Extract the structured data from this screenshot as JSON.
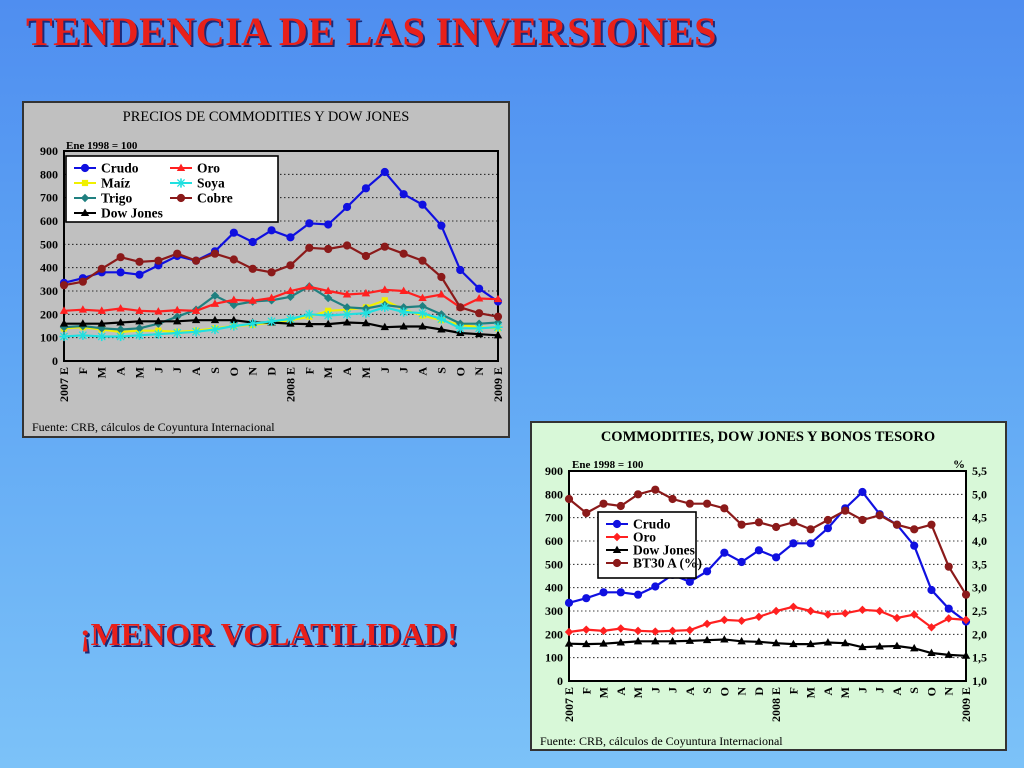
{
  "slide": {
    "title": "TENDENCIA DE LAS INVERSIONES",
    "slogan": "¡MENOR VOLATILIDAD!"
  },
  "chart_data": [
    {
      "type": "line",
      "title": "PRECIOS DE COMMODITIES Y DOW JONES",
      "subtitle": "Ene 1998 = 100",
      "source": "Fuente: CRB, cálculos de Coyuntura Internacional",
      "categories": [
        "E",
        "F",
        "M",
        "A",
        "M",
        "J",
        "J",
        "A",
        "S",
        "O",
        "N",
        "D",
        "E",
        "F",
        "M",
        "A",
        "M",
        "J",
        "J",
        "A",
        "S",
        "O",
        "N",
        "E"
      ],
      "year_labels": [
        {
          "index": 0,
          "label": "2007"
        },
        {
          "index": 12,
          "label": "2008"
        },
        {
          "index": 23,
          "label": "2009"
        }
      ],
      "ylim": [
        0,
        900
      ],
      "yticks": [
        0,
        100,
        200,
        300,
        400,
        500,
        600,
        700,
        800,
        900
      ],
      "grid": true,
      "legend_position": "top-left",
      "series": [
        {
          "name": "Crudo",
          "color": "#1010e0",
          "marker": "circle",
          "values": [
            335,
            355,
            380,
            380,
            370,
            410,
            450,
            430,
            470,
            550,
            510,
            560,
            530,
            590,
            585,
            660,
            740,
            810,
            715,
            670,
            580,
            390,
            310,
            255
          ]
        },
        {
          "name": "Maíz",
          "color": "#f0f000",
          "marker": "square",
          "values": [
            140,
            145,
            135,
            125,
            130,
            130,
            125,
            130,
            140,
            150,
            155,
            165,
            175,
            190,
            215,
            220,
            230,
            260,
            220,
            195,
            175,
            155,
            145,
            140
          ]
        },
        {
          "name": "Trigo",
          "color": "#208080",
          "marker": "diamond",
          "values": [
            145,
            150,
            140,
            135,
            140,
            160,
            190,
            220,
            280,
            240,
            255,
            260,
            275,
            320,
            270,
            230,
            225,
            240,
            230,
            235,
            200,
            160,
            160,
            165
          ]
        },
        {
          "name": "Dow Jones",
          "color": "#000000",
          "marker": "triangle",
          "values": [
            160,
            160,
            160,
            165,
            170,
            170,
            170,
            175,
            175,
            175,
            165,
            165,
            160,
            158,
            158,
            165,
            162,
            145,
            148,
            148,
            135,
            120,
            115,
            110
          ]
        },
        {
          "name": "Oro",
          "color": "#ff2020",
          "marker": "triangle",
          "values": [
            215,
            220,
            215,
            225,
            215,
            212,
            218,
            215,
            245,
            262,
            258,
            270,
            300,
            318,
            300,
            285,
            290,
            305,
            300,
            270,
            285,
            230,
            268,
            265
          ]
        },
        {
          "name": "Soya",
          "color": "#20e0e0",
          "marker": "star",
          "values": [
            105,
            110,
            105,
            105,
            110,
            115,
            120,
            125,
            135,
            150,
            160,
            170,
            180,
            200,
            195,
            200,
            205,
            230,
            210,
            205,
            180,
            140,
            140,
            145
          ]
        },
        {
          "name": "Cobre",
          "color": "#8b1a1a",
          "marker": "circle",
          "values": [
            325,
            340,
            395,
            445,
            425,
            430,
            460,
            430,
            460,
            435,
            395,
            380,
            410,
            485,
            480,
            495,
            450,
            490,
            460,
            430,
            360,
            230,
            205,
            190
          ]
        }
      ]
    },
    {
      "type": "line",
      "title": "COMMODITIES, DOW JONES Y BONOS TESORO",
      "subtitle": "Ene 1998 = 100",
      "y2_unit": "%",
      "source": "Fuente: CRB, cálculos de Coyuntura Internacional",
      "categories": [
        "E",
        "F",
        "M",
        "A",
        "M",
        "J",
        "J",
        "A",
        "S",
        "O",
        "N",
        "D",
        "E",
        "F",
        "M",
        "A",
        "M",
        "J",
        "J",
        "A",
        "S",
        "O",
        "N",
        "E"
      ],
      "year_labels": [
        {
          "index": 0,
          "label": "2007"
        },
        {
          "index": 12,
          "label": "2008"
        },
        {
          "index": 23,
          "label": "2009"
        }
      ],
      "ylim": [
        0,
        900
      ],
      "yticks": [
        0,
        100,
        200,
        300,
        400,
        500,
        600,
        700,
        800,
        900
      ],
      "y2lim": [
        1.0,
        5.5
      ],
      "y2ticks": [
        "1,0",
        "1,5",
        "2,0",
        "2,5",
        "3,0",
        "3,5",
        "4,0",
        "4,5",
        "5,0",
        "5,5"
      ],
      "grid": true,
      "legend_position": "center-left",
      "series": [
        {
          "name": "Crudo",
          "axis": "left",
          "color": "#1010e0",
          "marker": "circle",
          "values": [
            335,
            355,
            380,
            380,
            370,
            405,
            455,
            425,
            470,
            550,
            510,
            560,
            530,
            590,
            590,
            655,
            740,
            810,
            715,
            670,
            580,
            390,
            310,
            255
          ]
        },
        {
          "name": "Oro",
          "axis": "left",
          "color": "#ff2020",
          "marker": "diamond",
          "values": [
            210,
            220,
            215,
            225,
            215,
            212,
            215,
            218,
            245,
            262,
            258,
            275,
            300,
            318,
            300,
            285,
            290,
            305,
            300,
            270,
            285,
            230,
            268,
            262
          ]
        },
        {
          "name": "Dow Jones",
          "axis": "left",
          "color": "#000000",
          "marker": "triangle",
          "values": [
            160,
            158,
            160,
            165,
            170,
            170,
            170,
            172,
            175,
            178,
            170,
            168,
            162,
            158,
            158,
            165,
            162,
            145,
            148,
            150,
            140,
            120,
            112,
            108
          ]
        },
        {
          "name": "BT30 A (%)",
          "axis": "right",
          "color": "#8b1a1a",
          "marker": "circle",
          "values": [
            4.9,
            4.6,
            4.8,
            4.75,
            5.0,
            5.1,
            4.9,
            4.8,
            4.8,
            4.7,
            4.35,
            4.4,
            4.3,
            4.4,
            4.25,
            4.45,
            4.65,
            4.45,
            4.55,
            4.35,
            4.25,
            4.35,
            3.45,
            2.85
          ]
        }
      ]
    }
  ]
}
